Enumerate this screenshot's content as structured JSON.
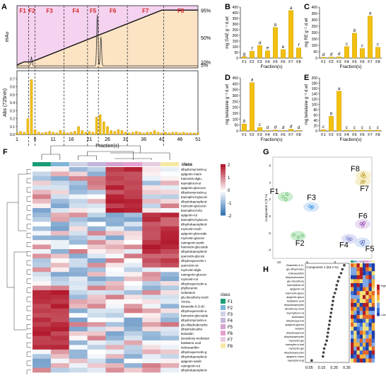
{
  "panel_letters": [
    "A",
    "B",
    "C",
    "D",
    "E",
    "F",
    "G",
    "H"
  ],
  "chart_data": [
    {
      "panel": "A-top",
      "type": "line",
      "xlabel": "",
      "ylabel": "mAu",
      "fractions": [
        "F1",
        "F2",
        "F3",
        "F4",
        "F5",
        "F6",
        "F7",
        "F8"
      ],
      "fraction_bounds": [
        1,
        4.2,
        6,
        14,
        20.5,
        23.5,
        31.5,
        41.5,
        51
      ],
      "gradient_labels": [
        "95%",
        "50%",
        "10%",
        "5%"
      ],
      "gradient": {
        "x": [
          1,
          3,
          5,
          41,
          51
        ],
        "y": [
          5,
          10,
          10,
          95,
          95
        ]
      },
      "peaks": [
        {
          "x": 5,
          "h": 0.15
        },
        {
          "x": 23.2,
          "h": 0.88
        },
        {
          "x": 24.2,
          "h": 0.5
        }
      ]
    },
    {
      "panel": "A-bottom",
      "type": "bar",
      "xlabel": "Fraction(s)",
      "ylabel": "Abs (725nm)",
      "x_ticks": [
        "1",
        "6",
        "11",
        "16",
        "21",
        "26",
        "31",
        "36",
        "41",
        "46",
        "51"
      ],
      "values": [
        0.02,
        0.04,
        0.03,
        0.2,
        0.69,
        0.06,
        0.03,
        0.02,
        0.03,
        0.04,
        0.03,
        0.02,
        0.05,
        0.03,
        0.02,
        0.03,
        0.04,
        0.1,
        0.05,
        0.03,
        0.04,
        0.03,
        0.22,
        0.25,
        0.16,
        0.1,
        0.05,
        0.04,
        0.06,
        0.05,
        0.03,
        0.02,
        0.03,
        0.04,
        0.03,
        0.02,
        0.03,
        0.03,
        0.05,
        0.03,
        0.02,
        0.03,
        0.02,
        0.03,
        0.03,
        0.02,
        0.03,
        0.02,
        0.02,
        0.02,
        0.02
      ],
      "ylim": [
        0,
        0.8
      ]
    },
    {
      "panel": "B",
      "type": "bar",
      "categories": [
        "F1",
        "F2",
        "F3",
        "F4",
        "F5",
        "F6",
        "F7",
        "F8"
      ],
      "values": [
        13,
        60,
        110,
        65,
        270,
        75,
        420,
        90
      ],
      "letters": [
        "g",
        "f",
        "d",
        "e",
        "b",
        "e",
        "a",
        "f"
      ],
      "ylim": [
        0,
        450
      ],
      "y_ticks": [
        "0",
        "50",
        "100",
        "150",
        "200",
        "250",
        "300",
        "350",
        "400",
        "450"
      ],
      "xlabel": "Fraction(s)",
      "ylabel": "mg GAE g⁻¹ d.wt"
    },
    {
      "panel": "C",
      "type": "bar",
      "categories": [
        "F1",
        "F2",
        "F3",
        "F4",
        "F5",
        "F6",
        "F7",
        "F8"
      ],
      "values": [
        6,
        8,
        10,
        90,
        195,
        75,
        330,
        85
      ],
      "letters": [
        "d",
        "d",
        "d",
        "c",
        "b",
        "c",
        "a",
        "c"
      ],
      "ylim": [
        0,
        400
      ],
      "y_ticks": [
        "0",
        "50",
        "100",
        "150",
        "200",
        "250",
        "300",
        "350",
        "400"
      ],
      "xlabel": "Fraction(s)",
      "ylabel": "mg RE g⁻¹ d.wt"
    },
    {
      "panel": "D",
      "type": "bar",
      "categories": [
        "F1",
        "F2",
        "F3",
        "F4",
        "F5",
        "F6",
        "F7",
        "F8"
      ],
      "values": [
        60,
        410,
        30,
        5,
        8,
        5,
        15,
        5
      ],
      "letters": [
        "b",
        "a",
        "c",
        "d",
        "d",
        "d",
        "d",
        "d"
      ],
      "ylim": [
        0,
        450
      ],
      "y_ticks": [
        "0",
        "50",
        "100",
        "150",
        "200",
        "250",
        "300",
        "350",
        "400",
        "450"
      ],
      "xlabel": "Fraction(s)",
      "ylabel": "mg betalaine g⁻¹ d.wt"
    },
    {
      "panel": "E",
      "type": "bar",
      "categories": [
        "F1",
        "F2",
        "F3",
        "F4",
        "F5",
        "F6",
        "F7",
        "F8"
      ],
      "values": [
        5,
        55,
        150,
        3,
        3,
        3,
        3,
        3
      ],
      "letters": [
        "c",
        "b",
        "a",
        "c",
        "c",
        "c",
        "c",
        "c"
      ],
      "ylim": [
        0,
        200
      ],
      "y_ticks": [
        "0",
        "20",
        "40",
        "60",
        "80",
        "100",
        "120",
        "140",
        "160",
        "180",
        "200"
      ],
      "xlabel": "Fraction(s)",
      "ylabel": "mg betalaine g⁻¹ d.wt"
    },
    {
      "panel": "F",
      "type": "heatmap",
      "title": "class",
      "rows": [
        "dihydromyricetin-g",
        "apigenin-mann",
        "hamnetin-diglu",
        "kaempferol-rut",
        "apigenin-glucuron",
        "dihydromyricetin-g",
        "kaempferol-glucosi",
        "dihydrokaempferol-",
        "myricetin-glucuron",
        "kaempferol-xila",
        "apigenin-rut",
        "kaempferol-glucuro",
        "dihydrokaempferol-",
        "myricetin-neoh",
        "apigenin-glucoside",
        "myricetin-glucosi",
        "naringenin-samb",
        "hamnetin-glucoside",
        "dihydrokaempferol-",
        "quercetin-glucosi",
        "dihydroquercetin-r",
        "quercetin-rut",
        "myricetin-diglu",
        "naringenin-glucosi",
        "myricetin-rut",
        "dihydroquercetin-a",
        "phyllocarnin",
        "isobetanin",
        "glu-decarboxy-neob",
        "TOTAL",
        "Betanidin-5-O-(6'-",
        "dihydroquercetin-a",
        "hamnetin-glucoside",
        "dihydromyricetin-a",
        "glu-dihydrodecarbo",
        "dihydrodecarbo",
        "betanidin",
        "decarboxy-neobetan",
        "betalamic acid",
        "indicaxanthin",
        "dihydroquercetin-g",
        "dihydrokaempferol-",
        "apigenin-samb",
        "naringenin-rut",
        "dihydrokaempferol-"
      ],
      "legend_title": "class",
      "legend": [
        "F1",
        "F2",
        "F3",
        "F4",
        "F5",
        "F6",
        "F7",
        "F8"
      ],
      "class_colors": [
        "#1b9e77",
        "#7fb5d9",
        "#cfd3e8",
        "#c3b6dc",
        "#d3a2cf",
        "#e4a0d0",
        "#e8cde0",
        "#f6e8a4"
      ],
      "scale_ticks": [
        "2",
        "1",
        "0",
        "-1",
        "-2"
      ]
    },
    {
      "panel": "G",
      "type": "scatter",
      "xlabel": "Component 1 (53.4 %)",
      "ylabel": "Component 2 (9 %)",
      "x_ticks": [
        "-10",
        "-5",
        "0",
        "5"
      ],
      "y_ticks": [
        "6",
        "4",
        "2",
        "0",
        "-2",
        "-4"
      ],
      "xlim": [
        -11,
        6.5
      ],
      "ylim": [
        -5,
        7
      ],
      "groups": [
        {
          "name": "F1",
          "points": [
            [
              -9.2,
              2.3
            ],
            [
              -8.7,
              2.0
            ],
            [
              -8.5,
              2.6
            ]
          ],
          "color": "#4caf50"
        },
        {
          "name": "F2",
          "points": [
            [
              -7.3,
              -2.2
            ],
            [
              -6.5,
              -2.5
            ],
            [
              -5.8,
              -2.3
            ]
          ],
          "color": "#4caf50"
        },
        {
          "name": "F3",
          "points": [
            [
              -4.5,
              1.2
            ],
            [
              -4.2,
              1.0
            ],
            [
              -4.0,
              1.1
            ]
          ],
          "color": "#1e88e5"
        },
        {
          "name": "F4",
          "points": [
            [
              2.2,
              -2.6
            ],
            [
              2.5,
              -2.8
            ],
            [
              2.8,
              -2.7
            ]
          ],
          "color": "#5c6bc0"
        },
        {
          "name": "F5",
          "points": [
            [
              4.6,
              -3.1
            ],
            [
              4.9,
              -3.3
            ],
            [
              5.0,
              -3.0
            ]
          ],
          "color": "#3f51b5"
        },
        {
          "name": "F6",
          "points": [
            [
              4.6,
              -0.9
            ],
            [
              4.9,
              -1.1
            ],
            [
              5.1,
              -0.8
            ]
          ],
          "color": "#7b1fa2"
        },
        {
          "name": "F7",
          "points": [
            [
              4.7,
              4.0
            ],
            [
              4.9,
              4.3
            ],
            [
              5.1,
              4.1
            ]
          ],
          "color": "#ad8b00"
        },
        {
          "name": "F8",
          "points": [
            [
              4.8,
              4.8
            ],
            [
              5.0,
              5.0
            ],
            [
              5.2,
              4.7
            ]
          ],
          "color": "#ad8b00"
        }
      ]
    },
    {
      "panel": "H",
      "type": "scatter",
      "x_ticks": [
        "0.05",
        "0.15",
        "0.25",
        "0.35"
      ],
      "labels": [
        "Betanidin-5-O-",
        "glu-dihydrodec",
        "indicaxanthin",
        "dihydrodecarbo",
        "glu-decarboxy",
        "kaempferol-xil",
        "apigenin-rut",
        "hamnetin-gluco",
        "apigenin-glucu",
        "betalamic acid",
        "dihydrokaempfer",
        "decarboxy-neob",
        "kaempferol-rut",
        "isobetanin",
        "dihydroquercet",
        "apigenin-glucos",
        "betanin",
        "dihydroquercet",
        "dihydrokaempfer",
        "myricetin-glu",
        "kaempferol-mal",
        "myricetin-glu",
        "dihydrokaempfer",
        "apigenin-mann",
        "kaempferol-gl"
      ],
      "values": [
        0.33,
        0.315,
        0.305,
        0.29,
        0.28,
        0.27,
        0.265,
        0.255,
        0.245,
        0.24,
        0.235,
        0.23,
        0.225,
        0.22,
        0.215,
        0.21,
        0.205,
        0.2,
        0.195,
        0.19,
        0.18,
        0.17,
        0.165,
        0.16,
        0.07
      ],
      "xlim": [
        0.02,
        0.37
      ],
      "legend": [
        "High",
        "Low"
      ]
    }
  ]
}
